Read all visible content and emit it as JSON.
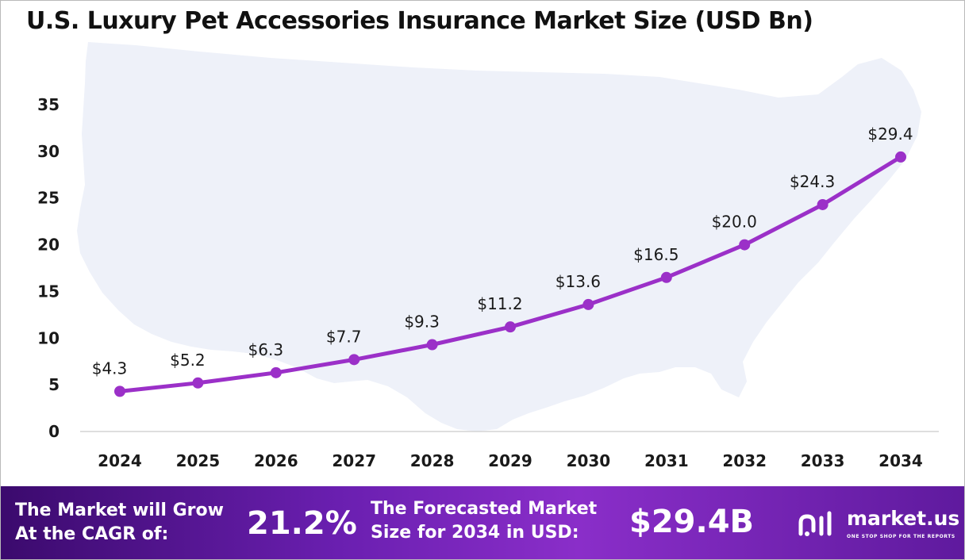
{
  "chart_data": {
    "type": "line",
    "title": "U.S. Luxury Pet Accessories Insurance Market Size (USD Bn)",
    "xlabel": "",
    "ylabel": "",
    "x": [
      "2024",
      "2025",
      "2026",
      "2027",
      "2028",
      "2029",
      "2030",
      "2031",
      "2032",
      "2033",
      "2034"
    ],
    "series": [
      {
        "values": [
          4.3,
          5.2,
          6.3,
          7.7,
          9.3,
          11.2,
          13.6,
          16.5,
          20.0,
          24.3,
          29.4
        ]
      }
    ],
    "data_labels": [
      "$4.3",
      "$5.2",
      "$6.3",
      "$7.7",
      "$9.3",
      "$11.2",
      "$13.6",
      "$16.5",
      "$20.0",
      "$24.3",
      "$29.4"
    ],
    "yticks": [
      0,
      5,
      10,
      15,
      20,
      25,
      30,
      35
    ],
    "ylim": [
      0,
      35
    ],
    "grid": false,
    "legend": "none",
    "line_color": "#9b30c8",
    "background_shape": "us-map-silhouette",
    "background_color": "#eef1f9"
  },
  "footer": {
    "cagr_label": "The Market will Grow At the CAGR of:",
    "cagr_value": "21.2%",
    "forecast_label": "The Forecasted Market Size for 2034 in USD:",
    "forecast_value": "$29.4B",
    "brand_name": "market.us",
    "brand_tagline": "ONE STOP SHOP FOR THE REPORTS",
    "brand_icon": "market-us-logo-icon"
  }
}
